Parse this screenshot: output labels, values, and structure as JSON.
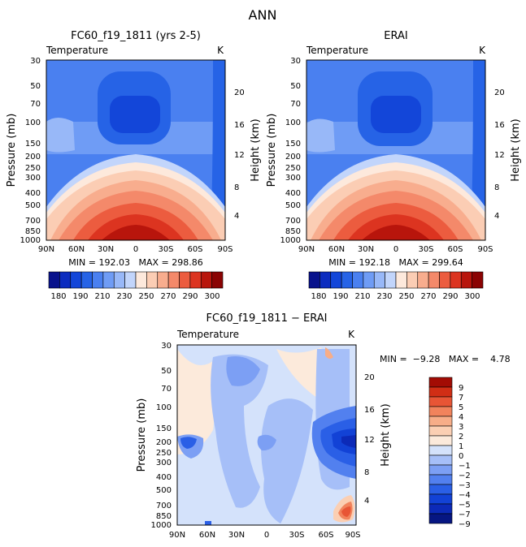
{
  "page_title": "ANN",
  "colors": {
    "temperature_scale": [
      "#08128c",
      "#0c2cbf",
      "#1346d9",
      "#2663e6",
      "#4a80f0",
      "#6f9cf5",
      "#98b8f8",
      "#c2d5fb",
      "#fde9dc",
      "#fbcdb4",
      "#f8ad8e",
      "#f4896a",
      "#ec5c3f",
      "#dc3420",
      "#b8150c",
      "#8a0303"
    ],
    "difference_scale": [
      "#061682",
      "#0c2ab8",
      "#1242d6",
      "#2a5fe6",
      "#5280ef",
      "#7c9ff4",
      "#a6bff8",
      "#d4e2fb",
      "#fceadb",
      "#fbcfb3",
      "#f7ad88",
      "#f1835c",
      "#e85535",
      "#d12e15",
      "#a30c04"
    ]
  },
  "chart_data": [
    {
      "type": "heatmap",
      "panel": "left",
      "title": "FC60_f19_1811 (yrs 2-5)",
      "variable_label": "Temperature",
      "units_label": "K",
      "ylabel": "Pressure (mb)",
      "ylabel_right": "Height (km)",
      "x_tick_labels": [
        "90N",
        "60N",
        "30N",
        "0",
        "30S",
        "60S",
        "90S"
      ],
      "y_tick_labels": [
        "30",
        "50",
        "70",
        "100",
        "150",
        "200",
        "250",
        "300",
        "400",
        "500",
        "700",
        "850",
        "1000"
      ],
      "right_tick_labels": [
        "20",
        "16",
        "12",
        "8",
        "4"
      ],
      "stats_text": "MIN = 192.03   MAX = 298.86",
      "min": 192.03,
      "max": 298.86,
      "colorbar_labels": [
        "180",
        "190",
        "210",
        "230",
        "250",
        "270",
        "290",
        "300"
      ]
    },
    {
      "type": "heatmap",
      "panel": "right",
      "title": "ERAI",
      "variable_label": "Temperature",
      "units_label": "K",
      "ylabel": "Pressure (mb)",
      "ylabel_right": "Height (km)",
      "x_tick_labels": [
        "90N",
        "60N",
        "30N",
        "0",
        "30S",
        "60S",
        "90S"
      ],
      "y_tick_labels": [
        "30",
        "50",
        "70",
        "100",
        "150",
        "200",
        "250",
        "300",
        "400",
        "500",
        "700",
        "850",
        "1000"
      ],
      "right_tick_labels": [
        "20",
        "16",
        "12",
        "8",
        "4"
      ],
      "stats_text": "MIN = 192.18   MAX = 299.64",
      "min": 192.18,
      "max": 299.64,
      "colorbar_labels": [
        "180",
        "190",
        "210",
        "230",
        "250",
        "270",
        "290",
        "300"
      ]
    },
    {
      "type": "heatmap",
      "panel": "difference",
      "title": "FC60_f19_1811 − ERAI",
      "variable_label": "Temperature",
      "units_label": "K",
      "ylabel": "Pressure (mb)",
      "ylabel_right": "Height (km)",
      "x_tick_labels": [
        "90N",
        "60N",
        "30N",
        "0",
        "30S",
        "60S",
        "90S"
      ],
      "y_tick_labels": [
        "30",
        "50",
        "70",
        "100",
        "150",
        "200",
        "250",
        "300",
        "400",
        "500",
        "700",
        "850",
        "1000"
      ],
      "right_tick_labels": [
        "20",
        "16",
        "12",
        "8",
        "4"
      ],
      "stats_text": "MIN =  −9.28   MAX =    4.78",
      "min": -9.28,
      "max": 4.78,
      "colorbar_labels": [
        "9",
        "7",
        "5",
        "4",
        "3",
        "2",
        "1",
        "0",
        "−1",
        "−2",
        "−3",
        "−4",
        "−5",
        "−7",
        "−9"
      ]
    }
  ]
}
